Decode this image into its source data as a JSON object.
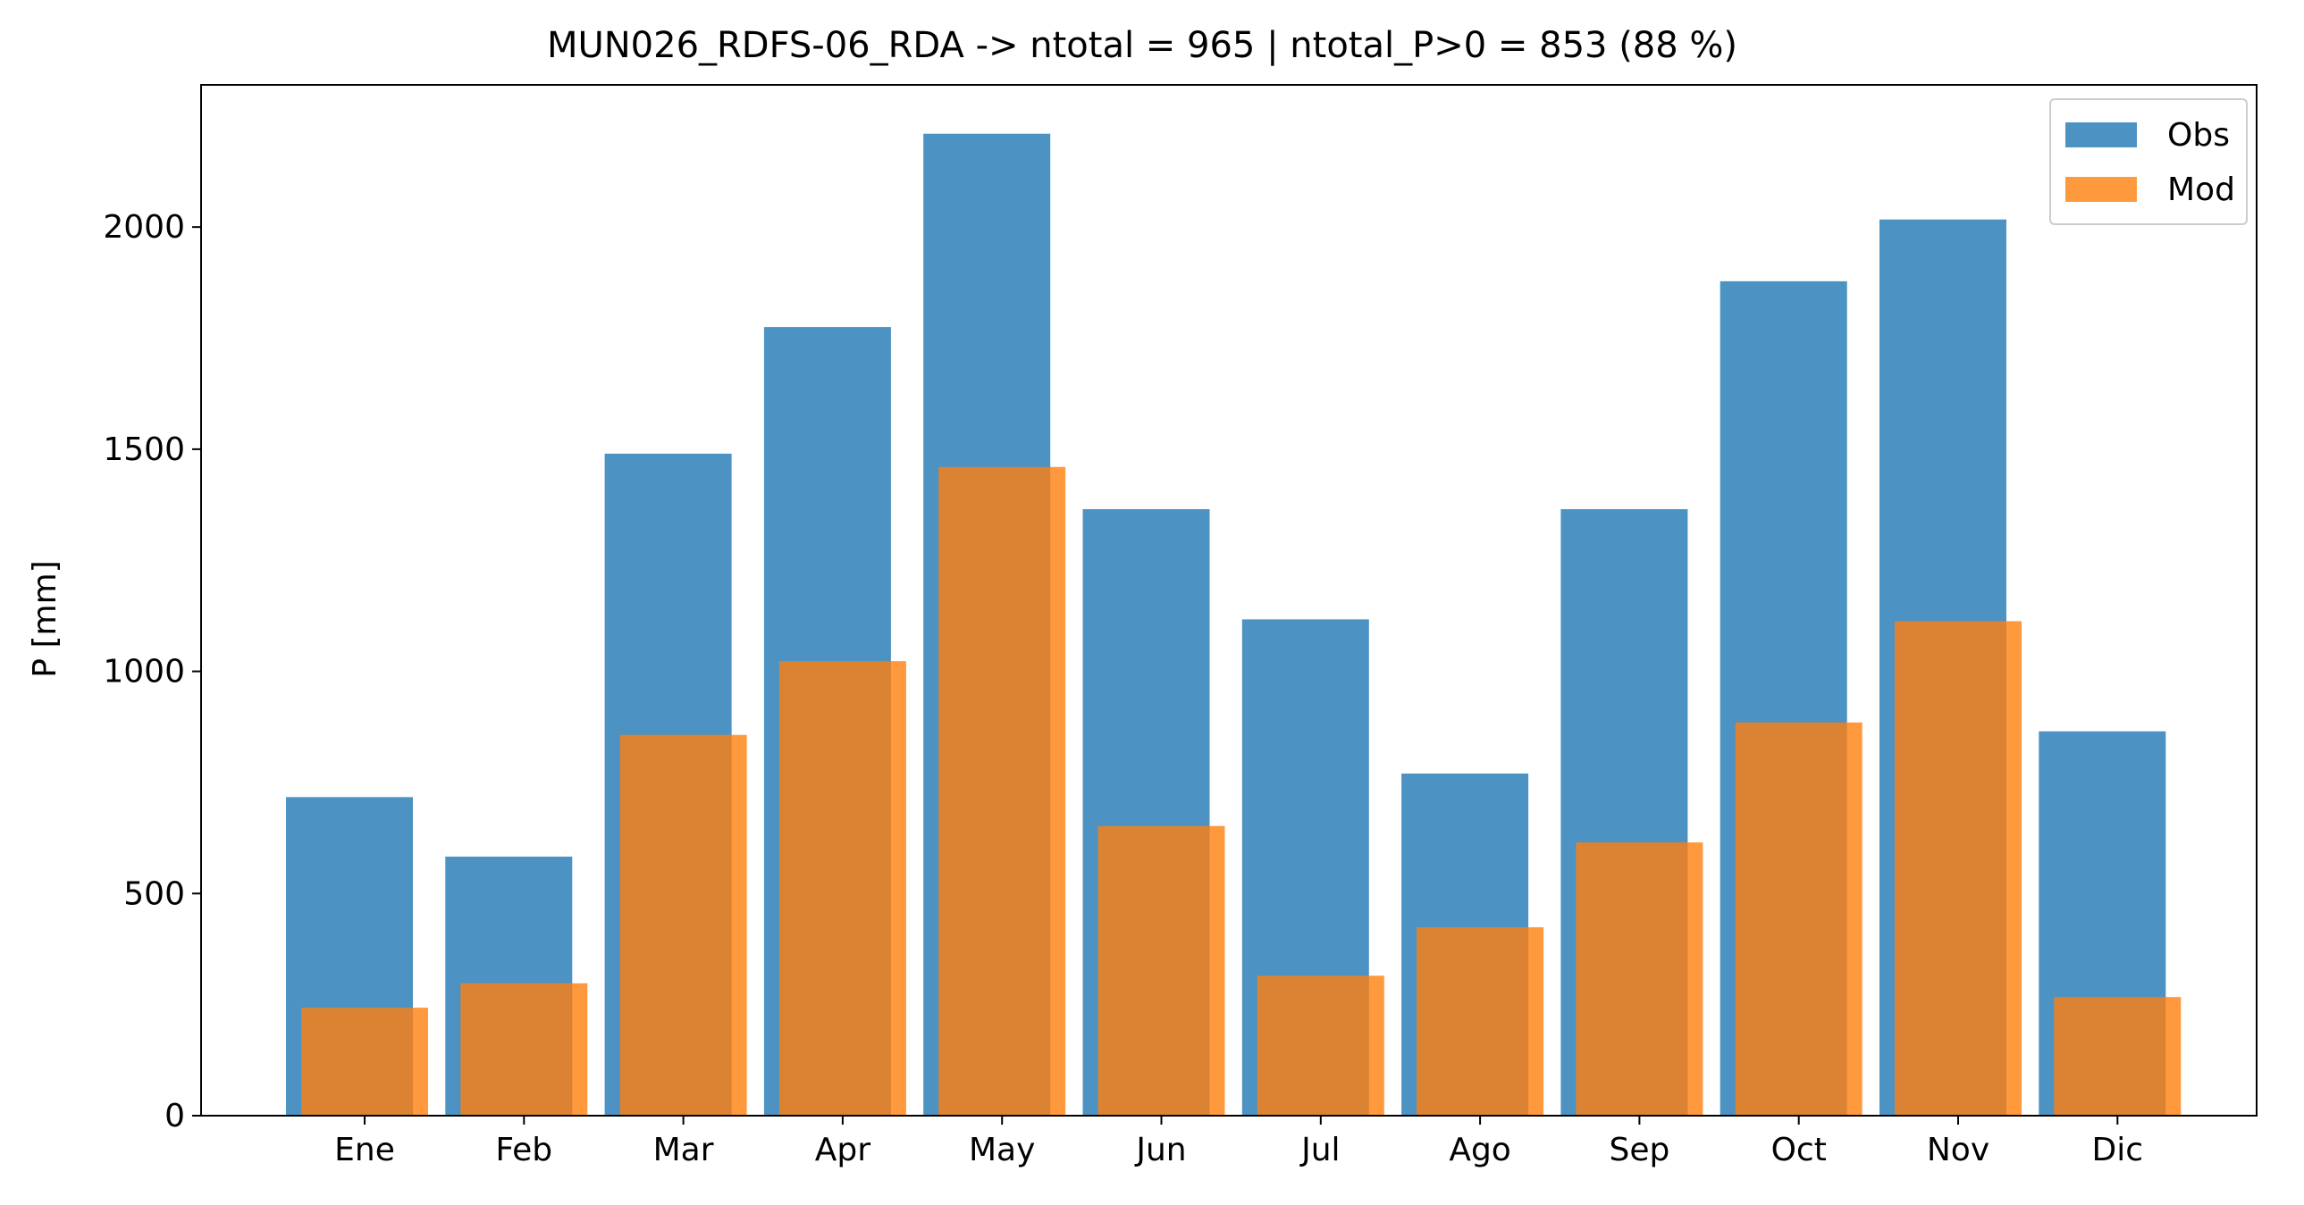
{
  "chart_data": {
    "type": "bar",
    "title": "MUN026_RDFS-06_RDA -> ntotal = 965 | ntotal_P>0 = 853 (88 %)",
    "xlabel": "",
    "ylabel": "P [mm]",
    "categories": [
      "Ene",
      "Feb",
      "Mar",
      "Apr",
      "May",
      "Jun",
      "Jul",
      "Ago",
      "Sep",
      "Oct",
      "Nov",
      "Dic"
    ],
    "series": [
      {
        "name": "Obs",
        "color": "#1f77b4",
        "values": [
          717,
          583,
          1490,
          1775,
          2210,
          1365,
          1117,
          770,
          1365,
          1878,
          2017,
          865
        ]
      },
      {
        "name": "Mod",
        "color": "#ff7f0e",
        "values": [
          243,
          298,
          857,
          1023,
          1460,
          652,
          315,
          424,
          615,
          885,
          1113,
          267
        ]
      }
    ],
    "ylim": [
      0,
      2320
    ],
    "yticks": [
      0,
      500,
      1000,
      1500,
      2000
    ],
    "legend": "top-right",
    "grid": false
  }
}
